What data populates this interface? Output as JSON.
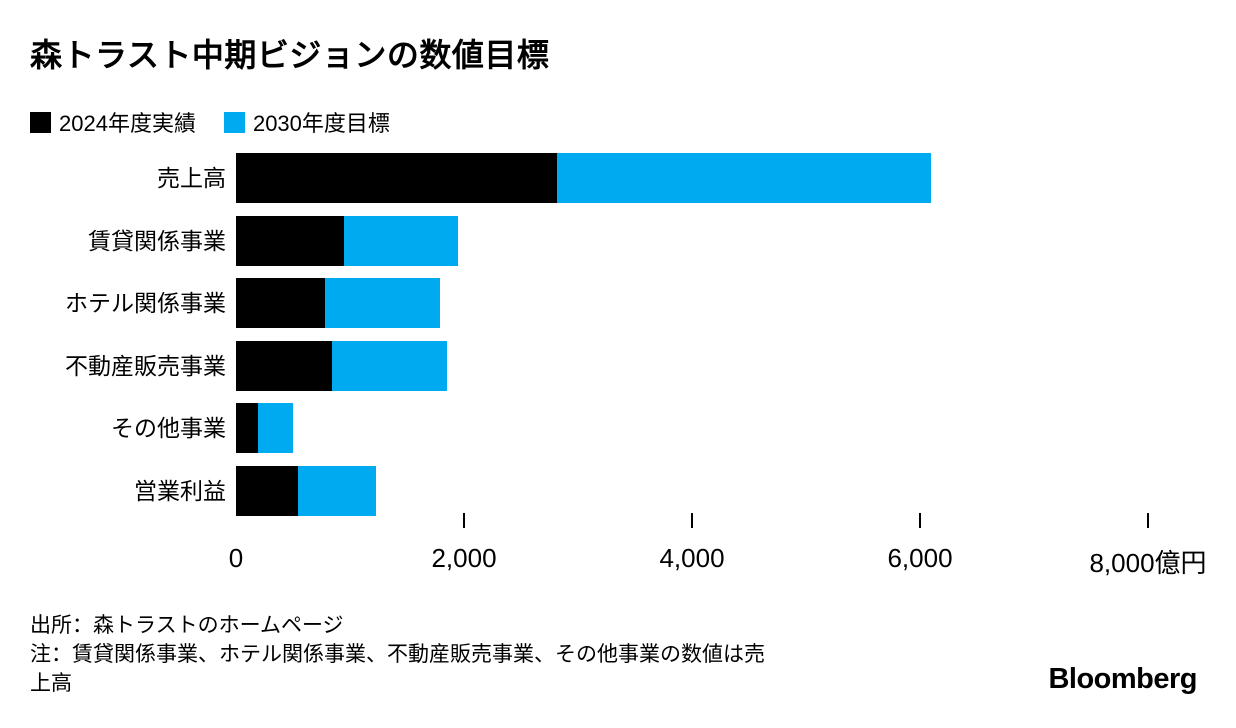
{
  "title": "森トラスト中期ビジョンの数値目標",
  "legend": [
    {
      "label": "2024年度実績",
      "color": "#000000"
    },
    {
      "label": "2030年度目標",
      "color": "#00AAF0"
    }
  ],
  "chart_data": {
    "type": "bar",
    "orientation": "horizontal",
    "stacked": true,
    "unit": "億円",
    "title": "森トラスト中期ビジョンの数値目標",
    "categories": [
      "売上高",
      "賃貸関係事業",
      "ホテル関係事業",
      "不動産販売事業",
      "その他事業",
      "営業利益"
    ],
    "series": [
      {
        "name": "2024年度実績",
        "color": "#000000",
        "values": [
          2820,
          950,
          785,
          845,
          190,
          540
        ]
      },
      {
        "name": "2030年度目標",
        "color": "#00AAF0",
        "values": [
          6100,
          1950,
          1790,
          1850,
          500,
          1230
        ]
      }
    ],
    "xlim": [
      0,
      8000
    ],
    "x_axis": {
      "tick_values": [
        2000,
        4000,
        6000,
        8000
      ],
      "labels": [
        {
          "value": 0,
          "text": "0"
        },
        {
          "value": 2000,
          "text": "2,000"
        },
        {
          "value": 4000,
          "text": "4,000"
        },
        {
          "value": 6000,
          "text": "6,000"
        },
        {
          "value": 8000,
          "text": "8,000億円"
        }
      ]
    },
    "legend_position": "top-left",
    "grid": false
  },
  "footer": {
    "source": "出所：森トラストのホームページ",
    "note_lines": [
      "注：賃貸関係事業、ホテル関係事業、不動産販売事業、その他事業の数値は売",
      "上高"
    ],
    "brand": "Bloomberg"
  }
}
